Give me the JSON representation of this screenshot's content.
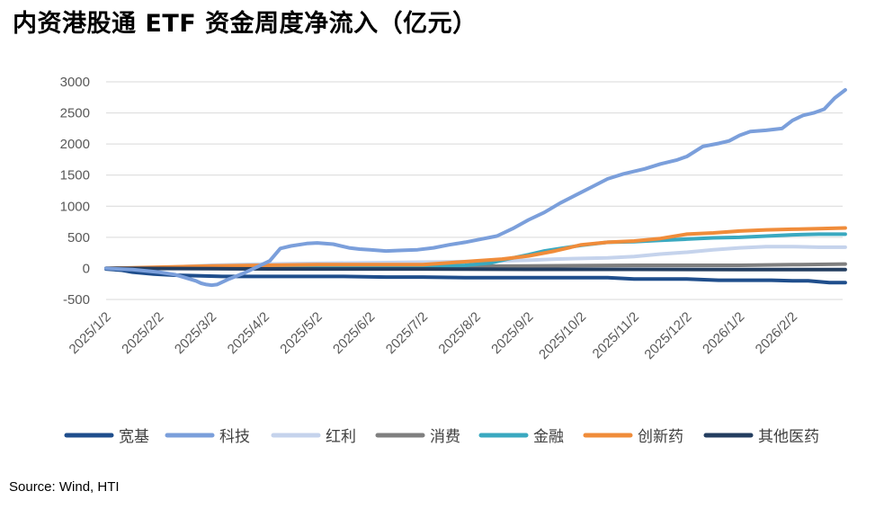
{
  "title": "内资港股通 ETF 资金周度净流入（亿元）",
  "source": "Source: Wind, HTI",
  "chart_data": {
    "type": "line",
    "ylim": [
      -500,
      3000
    ],
    "yticks": [
      3000,
      2500,
      2000,
      1500,
      1000,
      500,
      0,
      -500
    ],
    "xticks": [
      "2025/1/2",
      "2025/2/2",
      "2025/3/2",
      "2025/4/2",
      "2025/5/2",
      "2025/6/2",
      "2025/7/2",
      "2025/8/2",
      "2025/9/2",
      "2025/10/2",
      "2025/11/2",
      "2025/12/2",
      "2026/1/2",
      "2026/2/2"
    ],
    "grid": true,
    "legend_position": "bottom",
    "series": [
      {
        "name": "宽基",
        "color": "#1f4e8c",
        "x": [
          0,
          0.3,
          0.5,
          0.9,
          1.3,
          1.8,
          2.2,
          3.2,
          3.8,
          4.5,
          5.3,
          6.0,
          6.8,
          7.4,
          8.0,
          8.6,
          9.0,
          9.5,
          10.0,
          10.6,
          11.0,
          11.6,
          12.0,
          12.6,
          13.0,
          13.3,
          13.7,
          14.0
        ],
        "y": [
          -10,
          -30,
          -60,
          -90,
          -110,
          -120,
          -130,
          -130,
          -130,
          -130,
          -140,
          -140,
          -150,
          -150,
          -150,
          -150,
          -150,
          -150,
          -170,
          -170,
          -170,
          -190,
          -190,
          -190,
          -200,
          -200,
          -230,
          -230
        ]
      },
      {
        "name": "科技",
        "color": "#7b9fdb",
        "x": [
          0,
          0.5,
          1.0,
          1.3,
          1.5,
          1.7,
          1.8,
          1.9,
          2.0,
          2.1,
          2.3,
          2.6,
          2.9,
          3.1,
          3.3,
          3.5,
          3.8,
          4.0,
          4.3,
          4.6,
          4.8,
          5.0,
          5.3,
          5.6,
          5.9,
          6.2,
          6.5,
          6.8,
          7.1,
          7.4,
          7.7,
          8.0,
          8.3,
          8.6,
          8.9,
          9.2,
          9.5,
          9.8,
          10.2,
          10.5,
          10.8,
          11.0,
          11.3,
          11.6,
          11.8,
          12.0,
          12.2,
          12.5,
          12.8,
          13.0,
          13.2,
          13.4,
          13.6,
          13.8,
          14.0
        ],
        "y": [
          0,
          -20,
          -60,
          -100,
          -150,
          -200,
          -240,
          -260,
          -270,
          -260,
          -180,
          -80,
          40,
          120,
          320,
          360,
          400,
          410,
          390,
          330,
          310,
          300,
          280,
          290,
          300,
          330,
          380,
          420,
          470,
          520,
          640,
          780,
          900,
          1050,
          1180,
          1310,
          1440,
          1520,
          1600,
          1680,
          1740,
          1800,
          1960,
          2010,
          2050,
          2140,
          2200,
          2220,
          2250,
          2380,
          2460,
          2500,
          2560,
          2740,
          2870
        ]
      },
      {
        "name": "红利",
        "color": "#c5d3ec",
        "x": [
          0,
          1.0,
          2.0,
          3.0,
          4.0,
          5.0,
          6.0,
          7.0,
          8.0,
          8.5,
          9.0,
          9.5,
          10.0,
          10.5,
          11.0,
          11.5,
          12.0,
          12.5,
          13.0,
          13.5,
          14.0
        ],
        "y": [
          0,
          10,
          50,
          70,
          80,
          90,
          100,
          110,
          130,
          150,
          160,
          170,
          190,
          230,
          260,
          300,
          330,
          350,
          350,
          340,
          340
        ]
      },
      {
        "name": "消费",
        "color": "#7f7f7f",
        "x": [
          0,
          2.0,
          4.0,
          6.0,
          8.0,
          10.0,
          12.0,
          13.0,
          14.0
        ],
        "y": [
          0,
          10,
          20,
          30,
          40,
          50,
          50,
          60,
          70
        ]
      },
      {
        "name": "金融",
        "color": "#3aa9c0",
        "x": [
          0,
          2.0,
          4.0,
          6.0,
          6.8,
          7.3,
          7.6,
          8.0,
          8.3,
          8.6,
          9.0,
          9.5,
          10.0,
          10.5,
          11.0,
          11.5,
          12.0,
          12.5,
          13.0,
          13.5,
          14.0
        ],
        "y": [
          0,
          10,
          20,
          30,
          50,
          90,
          150,
          220,
          280,
          320,
          370,
          420,
          430,
          450,
          470,
          490,
          500,
          520,
          540,
          550,
          550
        ]
      },
      {
        "name": "创新药",
        "color": "#f08c3a",
        "x": [
          0,
          2.0,
          4.0,
          5.0,
          6.0,
          6.5,
          7.0,
          7.5,
          8.0,
          8.5,
          9.0,
          9.5,
          10.0,
          10.5,
          11.0,
          11.5,
          12.0,
          12.5,
          13.0,
          13.5,
          14.0
        ],
        "y": [
          0,
          40,
          60,
          60,
          60,
          90,
          120,
          150,
          200,
          280,
          380,
          420,
          440,
          480,
          550,
          570,
          600,
          620,
          630,
          640,
          650
        ]
      },
      {
        "name": "其他医药",
        "color": "#243e60",
        "x": [
          0,
          2.0,
          4.0,
          6.0,
          8.0,
          10.0,
          12.0,
          14.0
        ],
        "y": [
          0,
          -5,
          -10,
          -10,
          -15,
          -15,
          -20,
          -20
        ]
      }
    ]
  }
}
